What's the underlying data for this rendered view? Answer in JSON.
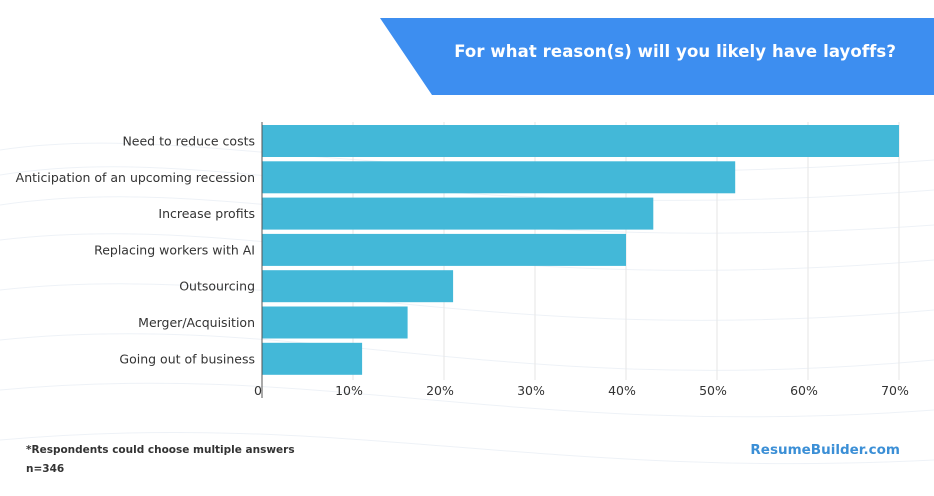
{
  "brand": "ResumeBuilder.com",
  "footnote": {
    "line1": "*Respondents could choose multiple answers",
    "line2": "n=346"
  },
  "colors": {
    "bar": "#43b8d8",
    "banner": "#3d8ef0",
    "grid": "#e6e6e6",
    "axis": "#555555",
    "brand": "#3b8fd6"
  },
  "chart_data": {
    "type": "bar",
    "orientation": "horizontal",
    "title": "For what reason(s) will you likely have layoffs?",
    "categories": [
      "Need to reduce costs",
      "Anticipation of an upcoming recession",
      "Increase profits",
      "Replacing workers with AI",
      "Outsourcing",
      "Merger/Acquisition",
      "Going out of business"
    ],
    "values": [
      70,
      52,
      43,
      40,
      21,
      16,
      11
    ],
    "xlim": [
      0,
      70
    ],
    "xticks": [
      0,
      10,
      20,
      30,
      40,
      50,
      60,
      70
    ],
    "xtick_labels": [
      "0",
      "10%",
      "20%",
      "30%",
      "40%",
      "50%",
      "60%",
      "70%"
    ],
    "xlabel": "",
    "ylabel": "",
    "grid": true,
    "legend": "none"
  }
}
